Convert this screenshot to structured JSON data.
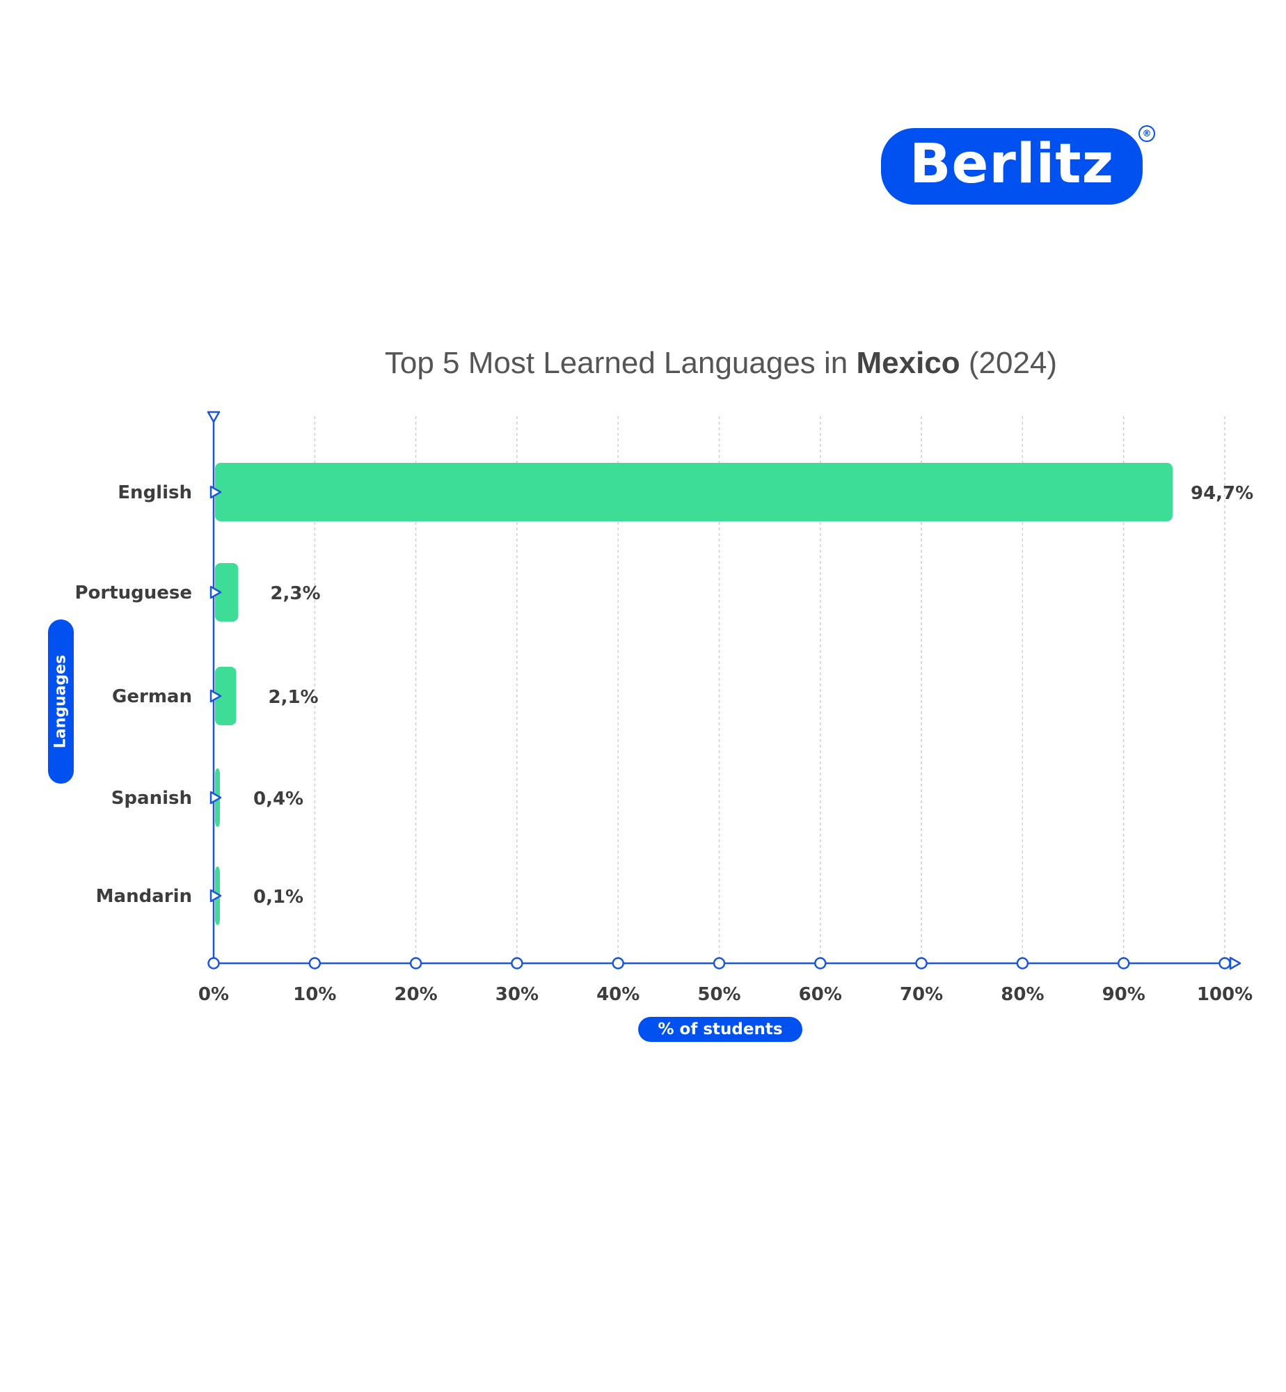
{
  "brand": {
    "name": "Berlitz",
    "registered_mark": "®",
    "color": "#0051f0"
  },
  "chart_data": {
    "type": "bar",
    "orientation": "horizontal",
    "title_parts": [
      "Top 5 Most Learned Languages in ",
      "Mexico",
      " (2024)"
    ],
    "categories": [
      "English",
      "Portuguese",
      "German",
      "Spanish",
      "Mandarin"
    ],
    "values": [
      94.7,
      2.3,
      2.1,
      0.4,
      0.1
    ],
    "value_labels": [
      "94,7%",
      "2,3%",
      "2,1%",
      "0,4%",
      "0,1%"
    ],
    "xlabel": "% of students",
    "ylabel": "Languages",
    "xlim": [
      0,
      100
    ],
    "x_ticks": [
      0,
      10,
      20,
      30,
      40,
      50,
      60,
      70,
      80,
      90,
      100
    ],
    "x_tick_labels": [
      "0%",
      "10%",
      "20%",
      "30%",
      "40%",
      "50%",
      "60%",
      "70%",
      "80%",
      "90%",
      "100%"
    ],
    "grid": "vertical dashed",
    "bar_color": "#3ddc97",
    "axis_color": "#1a56db"
  }
}
